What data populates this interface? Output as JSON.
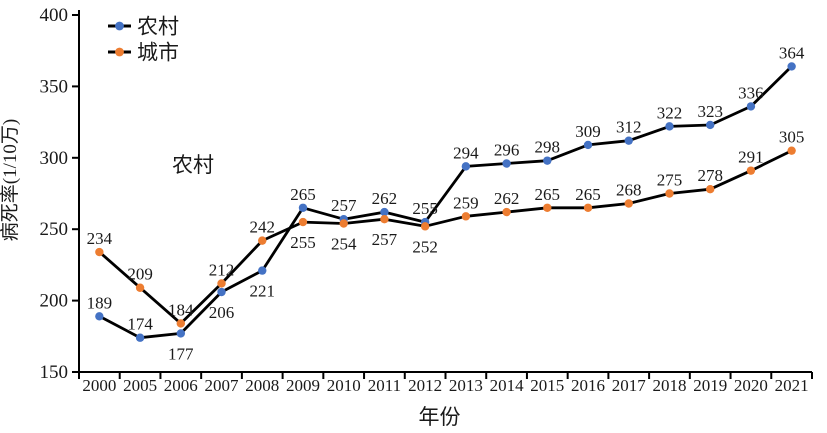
{
  "chart_data": {
    "type": "line",
    "title": "",
    "xlabel": "年份",
    "ylabel": "病死率(1/10万)",
    "ylim": [
      150,
      400
    ],
    "yticks": [
      150,
      200,
      250,
      300,
      350,
      400
    ],
    "grid": false,
    "legend_position": "top-left",
    "axis_color": "#000000",
    "line_color": "#000000",
    "categories": [
      "2000",
      "2005",
      "2006",
      "2007",
      "2008",
      "2009",
      "2010",
      "2011",
      "2012",
      "2013",
      "2014",
      "2015",
      "2016",
      "2017",
      "2018",
      "2019",
      "2020",
      "2021"
    ],
    "series": [
      {
        "name": "农村",
        "marker_color": "#4472C4",
        "values": [
          189,
          174,
          177,
          206,
          221,
          265,
          257,
          262,
          255,
          294,
          296,
          298,
          309,
          312,
          322,
          323,
          336,
          364
        ],
        "label_positions": [
          "above",
          "above",
          "below",
          "below",
          "below",
          "above",
          "above",
          "above",
          "above",
          "above",
          "above",
          "above",
          "above",
          "above",
          "above",
          "above",
          "above",
          "above"
        ]
      },
      {
        "name": "城市",
        "marker_color": "#ED7D31",
        "values": [
          234,
          209,
          184,
          212,
          242,
          255,
          254,
          257,
          252,
          259,
          262,
          265,
          265,
          268,
          275,
          278,
          291,
          305
        ],
        "label_positions": [
          "above",
          "above",
          "above",
          "above",
          "above",
          "below",
          "below",
          "below",
          "below",
          "above",
          "above",
          "above",
          "above",
          "above",
          "above",
          "above",
          "above",
          "above"
        ]
      }
    ],
    "annotations": [
      {
        "text": "农村",
        "x_index": 2.3,
        "y_value": 295
      }
    ]
  }
}
